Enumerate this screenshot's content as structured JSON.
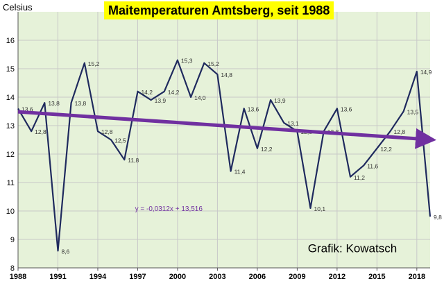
{
  "chart_data": {
    "type": "line",
    "title": "Maitemperaturen Amtsberg, seit 1988",
    "ylabel": "Celsius",
    "xlabel": "",
    "ylim": [
      8,
      17
    ],
    "xlim": [
      1988,
      2019
    ],
    "yticks": [
      8,
      9,
      10,
      11,
      12,
      13,
      14,
      15,
      16
    ],
    "xticks": [
      1988,
      1991,
      1994,
      1997,
      2000,
      2003,
      2006,
      2009,
      2012,
      2015,
      2018
    ],
    "grid": true,
    "series": [
      {
        "x": [
          1988,
          1989,
          1990,
          1991,
          1992,
          1993,
          1994,
          1995,
          1996,
          1997,
          1998,
          1999,
          2000,
          2001,
          2002,
          2003,
          2004,
          2005,
          2006,
          2007,
          2008,
          2009,
          2010,
          2011,
          2012,
          2013,
          2014,
          2015,
          2016,
          2017,
          2018,
          2019
        ],
        "values": [
          13.6,
          12.8,
          13.8,
          8.6,
          13.8,
          15.2,
          12.8,
          12.5,
          11.8,
          14.2,
          13.9,
          14.2,
          15.3,
          14.0,
          15.2,
          14.8,
          11.4,
          13.6,
          12.2,
          13.9,
          13.1,
          12.8,
          10.1,
          12.8,
          13.6,
          11.2,
          11.6,
          12.2,
          12.8,
          13.5,
          14.9,
          9.8
        ],
        "data_labels": [
          "13,6",
          "12,8",
          "13,8",
          "8,6",
          "13,8",
          "15,2",
          "12,8",
          "12,5",
          "11,8",
          "14,2",
          "13,9",
          "14,2",
          "15,3",
          "14,0",
          "15,2",
          "14,8",
          "11,4",
          "13,6",
          "12,2",
          "13,9",
          "13,1",
          "12,8",
          "10,1",
          "12,8",
          "13,6",
          "11,2",
          "11,6",
          "12,2",
          "12,8",
          "13,5",
          "14,9",
          "9,8"
        ]
      }
    ],
    "trendline": {
      "equation": "y = -0,0312x + 13,516",
      "slope": -0.0312,
      "intercept": 13.516
    },
    "annotation": "Grafik: Kowatsch",
    "colors": {
      "plot_bg": "#e6f2d9",
      "grid": "#c8c8c8",
      "line": "#1f2a5e",
      "trend": "#7030a0",
      "title_bg": "#ffff00"
    }
  }
}
